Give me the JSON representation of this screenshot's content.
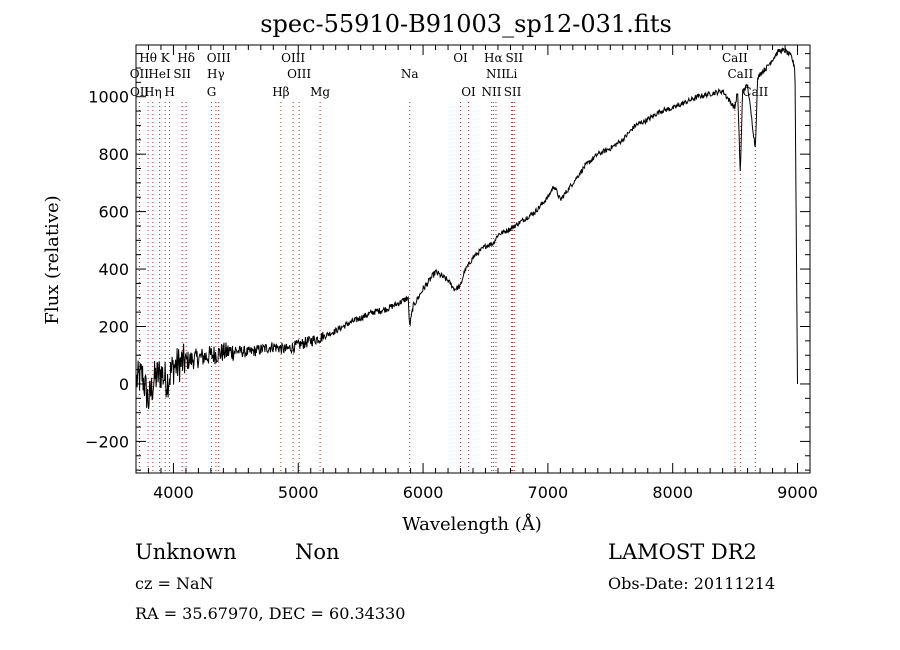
{
  "chart_data": {
    "type": "line",
    "title": "spec-55910-B91003_sp12-031.fits",
    "xlabel": "Wavelength (Å)",
    "ylabel": "Flux (relative)",
    "xlim": [
      3700,
      9100
    ],
    "ylim": [
      -310,
      1180
    ],
    "xticks": [
      4000,
      5000,
      6000,
      7000,
      8000,
      9000
    ],
    "yticks": [
      -200,
      0,
      200,
      400,
      600,
      800,
      1000
    ],
    "series": [
      {
        "x": [
          3700,
          3750,
          3800,
          3850,
          3900,
          3950,
          4000,
          4100,
          4200,
          4300,
          4400,
          4500,
          4600,
          4700,
          4800,
          4900,
          5000,
          5100,
          5200,
          5300,
          5400,
          5500,
          5600,
          5700,
          5800,
          5880,
          5893,
          5920,
          6000,
          6100,
          6200,
          6250,
          6300,
          6330,
          6400,
          6500,
          6563,
          6600,
          6700,
          6800,
          6900,
          7000,
          7050,
          7100,
          7200,
          7300,
          7400,
          7500,
          7600,
          7700,
          7800,
          7900,
          8000,
          8100,
          8200,
          8300,
          8400,
          8498,
          8520,
          8542,
          8560,
          8600,
          8662,
          8680,
          8700,
          8750,
          8800,
          8850,
          8900,
          8950,
          8980,
          9000
        ],
        "y": [
          10,
          30,
          -60,
          20,
          40,
          10,
          60,
          80,
          90,
          100,
          110,
          115,
          110,
          120,
          130,
          120,
          135,
          150,
          165,
          185,
          210,
          230,
          250,
          260,
          280,
          300,
          200,
          270,
          330,
          390,
          360,
          330,
          340,
          390,
          440,
          480,
          490,
          520,
          540,
          570,
          600,
          650,
          690,
          640,
          700,
          760,
          800,
          820,
          850,
          900,
          920,
          950,
          960,
          980,
          1000,
          1010,
          1020,
          960,
          1020,
          730,
          1020,
          1040,
          820,
          1060,
          1080,
          1100,
          1130,
          1160,
          1160,
          1140,
          1100,
          0
        ]
      }
    ],
    "lines": [
      {
        "label": "Hθ",
        "x": 3797,
        "row": 1
      },
      {
        "label": "K",
        "x": 3934,
        "row": 1
      },
      {
        "label": "Hδ",
        "x": 4102,
        "row": 1
      },
      {
        "label": "OIII",
        "x": 4363,
        "row": 1
      },
      {
        "label": "OIII",
        "x": 4959,
        "row": 1
      },
      {
        "label": "OI",
        "x": 6300,
        "row": 1
      },
      {
        "label": "Hα",
        "x": 6563,
        "row": 1
      },
      {
        "label": "SII",
        "x": 6731,
        "row": 1
      },
      {
        "label": "CaII",
        "x": 8498,
        "row": 1
      },
      {
        "label": "OII",
        "x": 3727,
        "row": 2
      },
      {
        "label": "HeI",
        "x": 3889,
        "row": 2
      },
      {
        "label": "SII",
        "x": 4070,
        "row": 2
      },
      {
        "label": "Hγ",
        "x": 4340,
        "row": 2
      },
      {
        "label": "OIII",
        "x": 5007,
        "row": 2
      },
      {
        "label": "Na",
        "x": 5893,
        "row": 2
      },
      {
        "label": "NII",
        "x": 6584,
        "row": 2
      },
      {
        "label": "Li",
        "x": 6708,
        "row": 2
      },
      {
        "label": "CaII",
        "x": 8542,
        "row": 2
      },
      {
        "label": "OII",
        "x": 3729,
        "row": 3
      },
      {
        "label": "Hη",
        "x": 3835,
        "row": 3
      },
      {
        "label": "H",
        "x": 3969,
        "row": 3
      },
      {
        "label": "G",
        "x": 4305,
        "row": 3
      },
      {
        "label": "Hβ",
        "x": 4861,
        "row": 3
      },
      {
        "label": "Mg",
        "x": 5175,
        "row": 3
      },
      {
        "label": "OI",
        "x": 6364,
        "row": 3
      },
      {
        "label": "NII",
        "x": 6548,
        "row": 3
      },
      {
        "label": "SII",
        "x": 6717,
        "row": 3
      },
      {
        "label": "CaII",
        "x": 8662,
        "row": 3
      }
    ]
  },
  "footer": {
    "object_class": "Unknown",
    "subclass": "Non",
    "survey": "LAMOST DR2",
    "cz": "cz = NaN",
    "obs_date": "Obs-Date: 20111214",
    "coords": "RA =  35.67970, DEC =  60.34330"
  }
}
